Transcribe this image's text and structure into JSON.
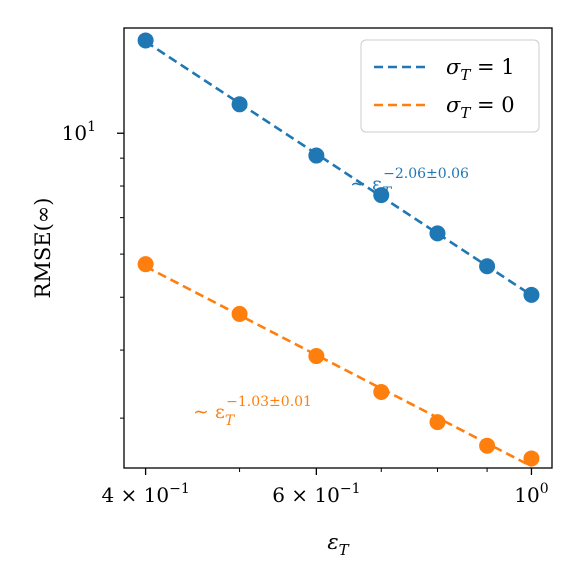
{
  "chart_data": {
    "type": "scatter",
    "title": "",
    "xlabel": "εT",
    "ylabel": "RMSE(∞)",
    "xscale": "log",
    "yscale": "log",
    "xlim": [
      0.38,
      1.05
    ],
    "ylim": [
      2.43,
      15.6
    ],
    "x_ticks": [
      {
        "value": 0.4,
        "base": "4 × 10",
        "exp": "−1"
      },
      {
        "value": 0.6,
        "base": "6 × 10",
        "exp": "−1"
      },
      {
        "value": 1.0,
        "base": "10",
        "exp": "0"
      }
    ],
    "y_ticks": [
      {
        "value": 10,
        "base": "10",
        "exp": "1"
      }
    ],
    "grid": false,
    "legend_position": "top-right",
    "series": [
      {
        "name": "σT = 1",
        "color": "#1f77b4",
        "x": [
          0.4,
          0.5,
          0.6,
          0.7,
          0.8,
          0.9,
          1.0
        ],
        "y": [
          14.8,
          11.3,
          9.1,
          7.7,
          6.55,
          5.7,
          5.05
        ],
        "fit_exponent": -2.06,
        "fit_label": "∼ ε",
        "fit_sub": "T",
        "fit_exp": "−2.06±0.06"
      },
      {
        "name": "σT = 0",
        "color": "#ff7f0e",
        "x": [
          0.4,
          0.5,
          0.6,
          0.7,
          0.8,
          0.9,
          1.0
        ],
        "y": [
          5.75,
          4.66,
          3.9,
          3.35,
          2.95,
          2.67,
          2.53
        ],
        "fit_exponent": -1.03,
        "fit_label": "∼ ε",
        "fit_sub": "T",
        "fit_exp": "−1.03±0.01"
      }
    ]
  }
}
